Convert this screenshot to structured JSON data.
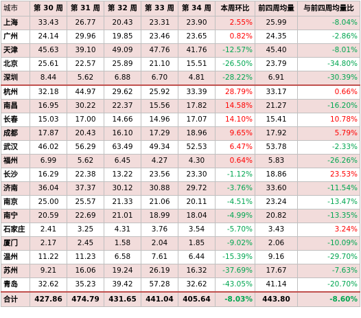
{
  "colors": {
    "positive": "#ff0000",
    "negative": "#00a650",
    "shade": "#f2dcdb",
    "separator": "#c0504d"
  },
  "headers": [
    "城市",
    "第 30 周",
    "第 31 周",
    "第 32 周",
    "第 33 周",
    "第 34 周",
    "本周环比",
    "前四周均量",
    "与前四周均量比"
  ],
  "rows": [
    {
      "city": "上海",
      "w30": "33.43",
      "w31": "26.77",
      "w32": "20.43",
      "w33": "23.31",
      "w34": "23.90",
      "wow": "2.55%",
      "avg4": "25.99",
      "vsavg": "-8.04%"
    },
    {
      "city": "广州",
      "w30": "24.14",
      "w31": "29.96",
      "w32": "19.85",
      "w33": "23.46",
      "w34": "23.65",
      "wow": "0.82%",
      "avg4": "24.35",
      "vsavg": "-2.86%"
    },
    {
      "city": "天津",
      "w30": "45.63",
      "w31": "39.10",
      "w32": "49.09",
      "w33": "47.76",
      "w34": "41.76",
      "wow": "-12.57%",
      "avg4": "45.40",
      "vsavg": "-8.01%"
    },
    {
      "city": "北京",
      "w30": "25.61",
      "w31": "22.57",
      "w32": "25.89",
      "w33": "21.10",
      "w34": "15.51",
      "wow": "-26.50%",
      "avg4": "23.79",
      "vsavg": "-34.80%"
    },
    {
      "city": "深圳",
      "w30": "8.44",
      "w31": "5.62",
      "w32": "6.88",
      "w33": "6.70",
      "w34": "4.81",
      "wow": "-28.22%",
      "avg4": "6.91",
      "vsavg": "-30.39%"
    },
    {
      "city": "杭州",
      "w30": "32.18",
      "w31": "44.97",
      "w32": "29.62",
      "w33": "25.92",
      "w34": "33.39",
      "wow": "28.79%",
      "avg4": "33.17",
      "vsavg": "0.66%"
    },
    {
      "city": "南昌",
      "w30": "16.95",
      "w31": "30.22",
      "w32": "22.37",
      "w33": "15.56",
      "w34": "17.82",
      "wow": "14.58%",
      "avg4": "21.27",
      "vsavg": "-16.20%"
    },
    {
      "city": "长春",
      "w30": "15.03",
      "w31": "17.00",
      "w32": "14.66",
      "w33": "14.96",
      "w34": "17.07",
      "wow": "14.10%",
      "avg4": "15.41",
      "vsavg": "10.78%"
    },
    {
      "city": "成都",
      "w30": "17.87",
      "w31": "20.43",
      "w32": "16.10",
      "w33": "17.29",
      "w34": "18.96",
      "wow": "9.65%",
      "avg4": "17.92",
      "vsavg": "5.79%"
    },
    {
      "city": "武汉",
      "w30": "46.02",
      "w31": "56.29",
      "w32": "63.49",
      "w33": "49.34",
      "w34": "52.53",
      "wow": "6.47%",
      "avg4": "53.78",
      "vsavg": "-2.33%"
    },
    {
      "city": "福州",
      "w30": "6.99",
      "w31": "5.62",
      "w32": "6.45",
      "w33": "4.27",
      "w34": "4.30",
      "wow": "0.64%",
      "avg4": "5.83",
      "vsavg": "-26.26%"
    },
    {
      "city": "长沙",
      "w30": "16.29",
      "w31": "22.38",
      "w32": "13.22",
      "w33": "23.56",
      "w34": "23.30",
      "wow": "-1.12%",
      "avg4": "18.86",
      "vsavg": "23.53%"
    },
    {
      "city": "济南",
      "w30": "36.04",
      "w31": "37.37",
      "w32": "30.12",
      "w33": "30.88",
      "w34": "29.72",
      "wow": "-3.76%",
      "avg4": "33.60",
      "vsavg": "-11.54%"
    },
    {
      "city": "南京",
      "w30": "25.00",
      "w31": "25.57",
      "w32": "21.33",
      "w33": "21.06",
      "w34": "20.11",
      "wow": "-4.51%",
      "avg4": "23.24",
      "vsavg": "-13.47%"
    },
    {
      "city": "南宁",
      "w30": "20.59",
      "w31": "22.69",
      "w32": "21.01",
      "w33": "18.99",
      "w34": "18.04",
      "wow": "-4.99%",
      "avg4": "20.82",
      "vsavg": "-13.35%"
    },
    {
      "city": "石家庄",
      "w30": "2.41",
      "w31": "3.25",
      "w32": "4.31",
      "w33": "3.76",
      "w34": "3.54",
      "wow": "-5.70%",
      "avg4": "3.43",
      "vsavg": "3.24%"
    },
    {
      "city": "厦门",
      "w30": "2.17",
      "w31": "2.45",
      "w32": "1.58",
      "w33": "2.04",
      "w34": "1.85",
      "wow": "-9.02%",
      "avg4": "2.06",
      "vsavg": "-10.09%"
    },
    {
      "city": "温州",
      "w30": "11.22",
      "w31": "11.23",
      "w32": "6.58",
      "w33": "7.61",
      "w34": "6.44",
      "wow": "-15.39%",
      "avg4": "9.16",
      "vsavg": "-29.70%"
    },
    {
      "city": "苏州",
      "w30": "9.21",
      "w31": "16.06",
      "w32": "19.24",
      "w33": "26.19",
      "w34": "16.32",
      "wow": "-37.69%",
      "avg4": "17.67",
      "vsavg": "-7.63%"
    },
    {
      "city": "青岛",
      "w30": "32.62",
      "w31": "35.23",
      "w32": "39.42",
      "w33": "57.28",
      "w34": "32.62",
      "wow": "-43.05%",
      "avg4": "41.14",
      "vsavg": "-20.70%"
    }
  ],
  "total": {
    "city": "合计",
    "w30": "427.86",
    "w31": "474.79",
    "w32": "431.65",
    "w33": "441.04",
    "w34": "405.64",
    "wow": "-8.03%",
    "avg4": "443.80",
    "vsavg": "-8.60%"
  }
}
